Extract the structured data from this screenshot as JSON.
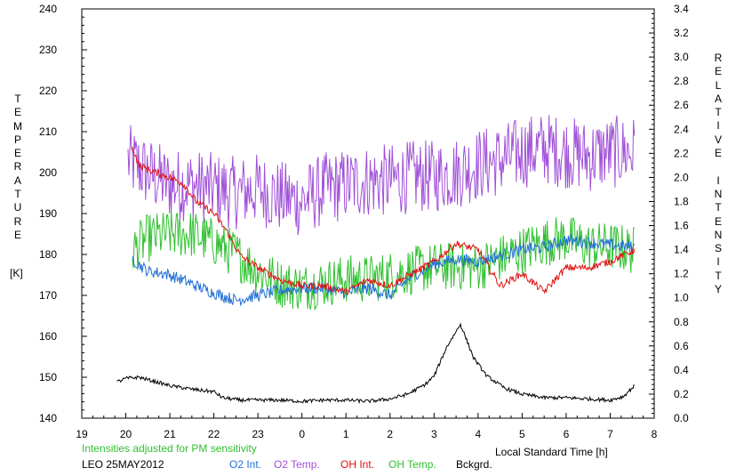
{
  "chart_data": {
    "type": "line",
    "title": "",
    "xlabel": "Local Standard Time [h]",
    "ylabel_left": "TEMPERATURE",
    "ylabel_left_unit": "[K]",
    "ylabel_right": "RELATIVE INTENSITY",
    "note": "Intensities adjusted for PM sensitivity",
    "site_date": "LEO 25MAY2012",
    "x_range": [
      19,
      32
    ],
    "x_tick_values": [
      19,
      20,
      21,
      22,
      23,
      24,
      25,
      26,
      27,
      28,
      29,
      30,
      31,
      32
    ],
    "x_tick_labels": [
      "19",
      "20",
      "21",
      "22",
      "23",
      "0",
      "1",
      "2",
      "3",
      "4",
      "5",
      "6",
      "7",
      "8"
    ],
    "y_left_range": [
      140,
      240
    ],
    "y_left_ticks": [
      140,
      150,
      160,
      170,
      180,
      190,
      200,
      210,
      220,
      230,
      240
    ],
    "y_right_range": [
      0.0,
      3.4
    ],
    "y_right_ticks": [
      "0.0",
      "0.2",
      "0.4",
      "0.6",
      "0.8",
      "1.0",
      "1.2",
      "1.4",
      "1.6",
      "1.8",
      "2.0",
      "2.2",
      "2.4",
      "2.6",
      "2.8",
      "3.0",
      "3.2",
      "3.4"
    ],
    "grid": false,
    "legend": [
      {
        "label": "O2 Int.",
        "color": "#1f6fd6"
      },
      {
        "label": "O2 Temp.",
        "color": "#a050d8"
      },
      {
        "label": "OH Int.",
        "color": "#e01010"
      },
      {
        "label": "OH Temp.",
        "color": "#30c030"
      },
      {
        "label": "Bckgrd.",
        "color": "#000000"
      }
    ],
    "series": [
      {
        "name": "O2 Temp.",
        "axis": "left",
        "color": "#a050d8",
        "x_start": 20.05,
        "x_end": 31.55,
        "noise": 9,
        "x": [
          20.05,
          20.5,
          21.0,
          21.5,
          22.0,
          22.5,
          23.0,
          23.5,
          24.0,
          24.5,
          25.0,
          25.5,
          26.0,
          26.5,
          27.0,
          27.5,
          28.0,
          28.5,
          29.0,
          29.5,
          30.0,
          30.5,
          31.0,
          31.55
        ],
        "y": [
          203,
          200,
          197,
          197,
          196,
          195,
          196,
          194,
          193,
          196,
          197,
          198,
          198,
          199,
          199,
          200,
          202,
          203,
          205,
          206,
          205,
          204,
          205,
          205
        ]
      },
      {
        "name": "OH Temp.",
        "axis": "left",
        "color": "#30c030",
        "x_start": 20.15,
        "x_end": 31.55,
        "noise": 6,
        "x": [
          20.15,
          20.5,
          21.0,
          21.5,
          22.0,
          22.5,
          23.0,
          23.5,
          24.0,
          24.5,
          25.0,
          25.5,
          26.0,
          26.5,
          27.0,
          27.5,
          28.0,
          28.5,
          29.0,
          29.5,
          30.0,
          30.5,
          31.0,
          31.55
        ],
        "y": [
          181,
          184,
          185,
          185,
          183,
          180,
          176,
          173,
          172,
          173,
          174,
          174,
          175,
          176,
          177,
          177,
          177,
          179,
          181,
          183,
          184,
          182,
          182,
          181
        ]
      },
      {
        "name": "O2 Int.",
        "axis": "right",
        "color": "#1f6fd6",
        "x_start": 20.15,
        "x_end": 31.55,
        "noise": 0.05,
        "x": [
          20.15,
          20.5,
          20.9,
          21.2,
          21.6,
          22.0,
          22.5,
          23.0,
          23.5,
          24.0,
          24.5,
          25.0,
          25.5,
          26.0,
          26.5,
          27.0,
          27.5,
          28.0,
          28.5,
          29.0,
          29.5,
          30.0,
          30.5,
          31.0,
          31.55
        ],
        "y": [
          1.32,
          1.22,
          1.2,
          1.16,
          1.1,
          1.04,
          0.98,
          1.02,
          1.06,
          1.08,
          1.08,
          1.04,
          1.08,
          1.02,
          1.18,
          1.28,
          1.32,
          1.3,
          1.35,
          1.4,
          1.42,
          1.48,
          1.46,
          1.44,
          1.42
        ]
      },
      {
        "name": "OH Int.",
        "axis": "right",
        "color": "#e01010",
        "x_start": 20.15,
        "x_end": 31.55,
        "noise": 0.03,
        "x": [
          20.15,
          20.3,
          20.6,
          21.0,
          21.3,
          21.6,
          22.0,
          22.3,
          22.6,
          23.0,
          23.5,
          24.0,
          24.5,
          25.0,
          25.5,
          26.0,
          26.5,
          27.0,
          27.5,
          28.0,
          28.5,
          29.0,
          29.5,
          30.0,
          30.5,
          31.0,
          31.55
        ],
        "y": [
          2.25,
          2.1,
          2.05,
          2.0,
          1.95,
          1.8,
          1.7,
          1.55,
          1.35,
          1.25,
          1.15,
          1.1,
          1.1,
          1.05,
          1.15,
          1.1,
          1.2,
          1.3,
          1.45,
          1.4,
          1.1,
          1.2,
          1.05,
          1.25,
          1.25,
          1.3,
          1.4
        ]
      },
      {
        "name": "Bckgrd.",
        "axis": "right",
        "color": "#000000",
        "x_start": 19.8,
        "x_end": 31.55,
        "noise": 0.015,
        "x": [
          19.8,
          20.0,
          20.3,
          20.6,
          21.0,
          21.5,
          22.0,
          22.2,
          22.6,
          23.0,
          23.5,
          24.0,
          24.5,
          25.0,
          25.5,
          26.0,
          26.4,
          26.8,
          27.0,
          27.3,
          27.6,
          27.9,
          28.2,
          28.6,
          29.0,
          29.5,
          30.0,
          30.5,
          31.0,
          31.3,
          31.55
        ],
        "y": [
          0.3,
          0.33,
          0.34,
          0.31,
          0.27,
          0.24,
          0.22,
          0.17,
          0.15,
          0.15,
          0.15,
          0.14,
          0.15,
          0.15,
          0.14,
          0.16,
          0.2,
          0.28,
          0.35,
          0.6,
          0.78,
          0.5,
          0.35,
          0.25,
          0.2,
          0.17,
          0.17,
          0.16,
          0.15,
          0.18,
          0.27
        ]
      }
    ]
  }
}
